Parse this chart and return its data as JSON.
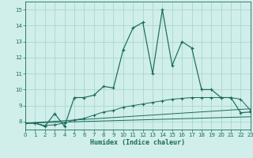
{
  "xlabel": "Humidex (Indice chaleur)",
  "bg_color": "#d0eeea",
  "grid_color": "#a8d8d0",
  "line_color": "#1a6b5a",
  "xlim": [
    0,
    23
  ],
  "ylim": [
    7.5,
    15.5
  ],
  "xticks": [
    0,
    1,
    2,
    3,
    4,
    5,
    6,
    7,
    8,
    9,
    10,
    11,
    12,
    13,
    14,
    15,
    16,
    17,
    18,
    19,
    20,
    21,
    22,
    23
  ],
  "yticks": [
    8,
    9,
    10,
    11,
    12,
    13,
    14,
    15
  ],
  "main_x": [
    0,
    1,
    2,
    3,
    4,
    5,
    6,
    7,
    8,
    9,
    10,
    11,
    12,
    13,
    14,
    15,
    16,
    17,
    18,
    19,
    20,
    21,
    22,
    23
  ],
  "main_y": [
    7.9,
    7.9,
    7.7,
    8.5,
    7.7,
    9.5,
    9.5,
    9.65,
    10.2,
    10.1,
    12.5,
    13.85,
    14.2,
    11.0,
    15.0,
    11.5,
    13.0,
    12.6,
    10.0,
    10.0,
    9.5,
    9.5,
    8.55,
    8.6
  ],
  "line2_x": [
    0,
    1,
    2,
    3,
    4,
    5,
    6,
    7,
    8,
    9,
    10,
    11,
    12,
    13,
    14,
    15,
    16,
    17,
    18,
    19,
    20,
    21,
    22,
    23
  ],
  "line2_y": [
    7.9,
    7.9,
    7.75,
    7.8,
    7.9,
    8.1,
    8.2,
    8.4,
    8.6,
    8.7,
    8.9,
    9.0,
    9.1,
    9.2,
    9.3,
    9.4,
    9.45,
    9.5,
    9.5,
    9.5,
    9.5,
    9.5,
    9.4,
    8.7
  ],
  "line3_x": [
    0,
    23
  ],
  "line3_y": [
    7.9,
    8.8
  ],
  "line4_x": [
    0,
    23
  ],
  "line4_y": [
    7.9,
    8.3
  ],
  "tick_fontsize": 5,
  "xlabel_fontsize": 6
}
